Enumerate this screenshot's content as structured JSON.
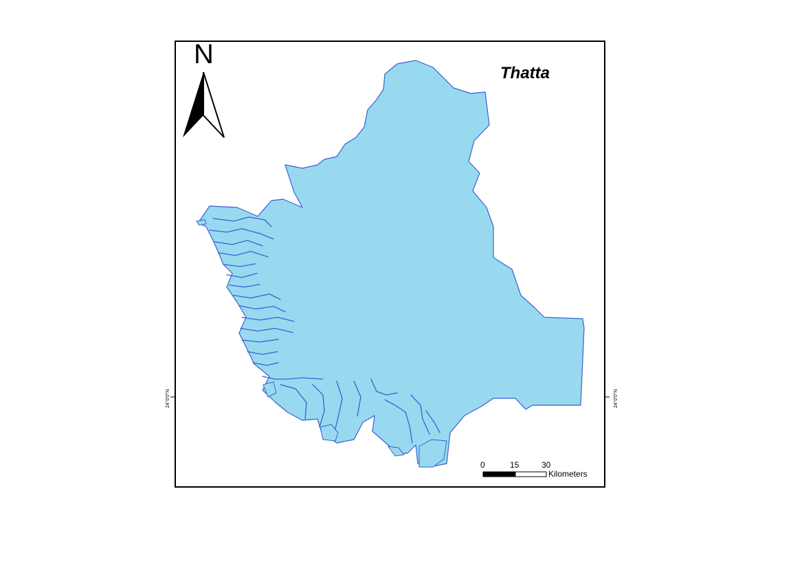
{
  "map": {
    "title": "Thatta",
    "north_label": "N",
    "region_fill": "#98D9F0",
    "region_stroke": "#3A5FD0",
    "frame_color": "#000000"
  },
  "scale_bar": {
    "ticks": [
      "0",
      "15",
      "30"
    ],
    "unit": "Kilometers"
  },
  "graticule": {
    "left_label": "24°0'0\"N",
    "right_label": "24°0'0\"N"
  }
}
